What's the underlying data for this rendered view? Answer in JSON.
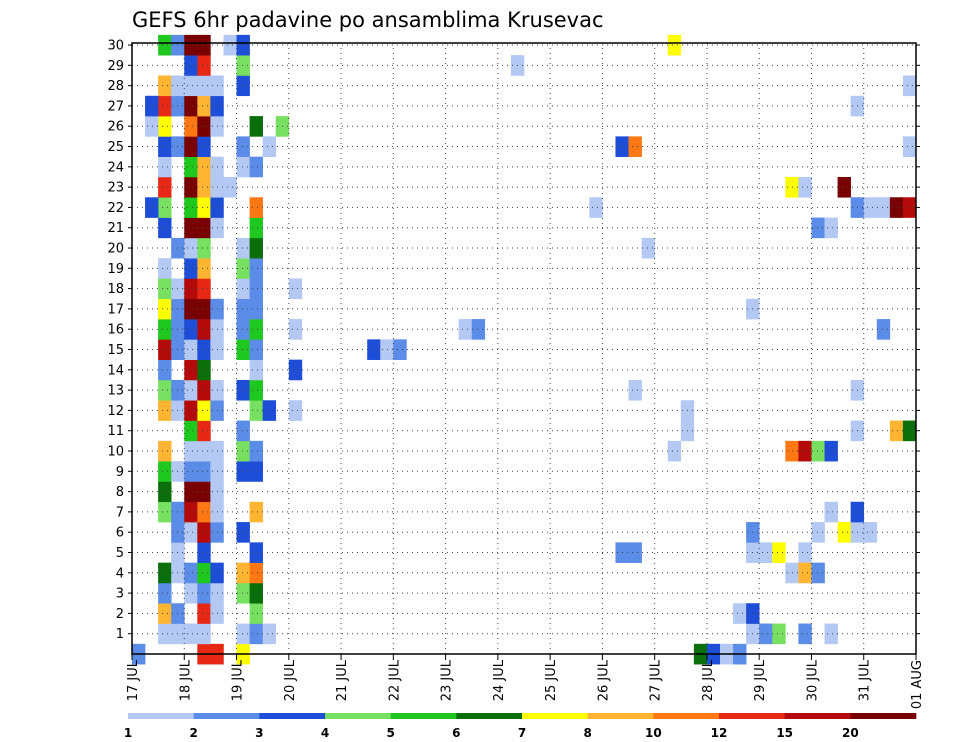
{
  "chart_data": {
    "type": "heatmap",
    "title": "GEFS 6hr padavine po ansamblima Krusevac",
    "x_tick_labels": [
      "17 JUL",
      "18 JUL",
      "19 JUL",
      "20 JUL",
      "21 JUL",
      "22 JUL",
      "23 JUL",
      "24 JUL",
      "25 JUL",
      "26 JUL",
      "27 JUL",
      "28 JUL",
      "29 JUL",
      "30 JUL",
      "31 JUL",
      "01 AUG"
    ],
    "y_tick_labels": [
      "1",
      "2",
      "3",
      "4",
      "5",
      "6",
      "7",
      "8",
      "9",
      "10",
      "11",
      "12",
      "13",
      "14",
      "15",
      "16",
      "17",
      "18",
      "19",
      "20",
      "21",
      "22",
      "23",
      "24",
      "25",
      "26",
      "27",
      "28",
      "29",
      "30"
    ],
    "xlim": [
      0,
      60
    ],
    "ylim": [
      0,
      30
    ],
    "grid": true,
    "legend": {
      "placement": "bottom",
      "labels": [
        "1",
        "2",
        "3",
        "4",
        "5",
        "6",
        "7",
        "8",
        "10",
        "12",
        "15",
        "20"
      ],
      "colors": [
        "#b4c8f4",
        "#5a8ce8",
        "#1e4ed8",
        "#78e060",
        "#1ec81e",
        "#0a6e0a",
        "#ffff00",
        "#ffb432",
        "#ff7814",
        "#e62814",
        "#b40a0a",
        "#780000"
      ]
    },
    "cells": [
      {
        "x": 0,
        "y": 0,
        "c": 1
      },
      {
        "x": 2,
        "y": 1,
        "c": 0
      },
      {
        "x": 2,
        "y": 2,
        "c": 7
      },
      {
        "x": 2,
        "y": 3,
        "c": 1
      },
      {
        "x": 2,
        "y": 4,
        "c": 5
      },
      {
        "x": 2,
        "y": 7,
        "c": 3
      },
      {
        "x": 2,
        "y": 8,
        "c": 5
      },
      {
        "x": 2,
        "y": 9,
        "c": 4
      },
      {
        "x": 2,
        "y": 10,
        "c": 7
      },
      {
        "x": 2,
        "y": 12,
        "c": 7
      },
      {
        "x": 2,
        "y": 13,
        "c": 3
      },
      {
        "x": 2,
        "y": 14,
        "c": 1
      },
      {
        "x": 2,
        "y": 15,
        "c": 10
      },
      {
        "x": 2,
        "y": 16,
        "c": 4
      },
      {
        "x": 2,
        "y": 17,
        "c": 6
      },
      {
        "x": 2,
        "y": 18,
        "c": 3
      },
      {
        "x": 2,
        "y": 19,
        "c": 0
      },
      {
        "x": 2,
        "y": 21,
        "c": 2
      },
      {
        "x": 2,
        "y": 22,
        "c": 3
      },
      {
        "x": 2,
        "y": 23,
        "c": 9
      },
      {
        "x": 2,
        "y": 24,
        "c": 0
      },
      {
        "x": 2,
        "y": 25,
        "c": 2
      },
      {
        "x": 2,
        "y": 26,
        "c": 6
      },
      {
        "x": 2,
        "y": 27,
        "c": 9
      },
      {
        "x": 2,
        "y": 28,
        "c": 7
      },
      {
        "x": 2,
        "y": 30,
        "c": 4
      },
      {
        "x": 3,
        "y": 1,
        "c": 0
      },
      {
        "x": 3,
        "y": 2,
        "c": 1
      },
      {
        "x": 3,
        "y": 4,
        "c": 0
      },
      {
        "x": 3,
        "y": 5,
        "c": 0
      },
      {
        "x": 3,
        "y": 6,
        "c": 1
      },
      {
        "x": 3,
        "y": 7,
        "c": 1
      },
      {
        "x": 3,
        "y": 9,
        "c": 0
      },
      {
        "x": 3,
        "y": 12,
        "c": 0
      },
      {
        "x": 3,
        "y": 13,
        "c": 1
      },
      {
        "x": 3,
        "y": 15,
        "c": 1
      },
      {
        "x": 3,
        "y": 16,
        "c": 1
      },
      {
        "x": 3,
        "y": 17,
        "c": 1
      },
      {
        "x": 3,
        "y": 18,
        "c": 0
      },
      {
        "x": 3,
        "y": 20,
        "c": 1
      },
      {
        "x": 3,
        "y": 25,
        "c": 1
      },
      {
        "x": 3,
        "y": 27,
        "c": 1
      },
      {
        "x": 3,
        "y": 28,
        "c": 0
      },
      {
        "x": 3,
        "y": 30,
        "c": 1
      },
      {
        "x": 1,
        "y": 22,
        "c": 2
      },
      {
        "x": 1,
        "y": 26,
        "c": 0
      },
      {
        "x": 1,
        "y": 27,
        "c": 2
      },
      {
        "x": 4,
        "y": 1,
        "c": 0
      },
      {
        "x": 4,
        "y": 3,
        "c": 0
      },
      {
        "x": 4,
        "y": 4,
        "c": 1
      },
      {
        "x": 4,
        "y": 6,
        "c": 0
      },
      {
        "x": 4,
        "y": 7,
        "c": 10
      },
      {
        "x": 4,
        "y": 8,
        "c": 11
      },
      {
        "x": 4,
        "y": 9,
        "c": 1
      },
      {
        "x": 4,
        "y": 10,
        "c": 0
      },
      {
        "x": 4,
        "y": 11,
        "c": 4
      },
      {
        "x": 4,
        "y": 12,
        "c": 10
      },
      {
        "x": 4,
        "y": 13,
        "c": 0
      },
      {
        "x": 4,
        "y": 14,
        "c": 10
      },
      {
        "x": 4,
        "y": 15,
        "c": 0
      },
      {
        "x": 4,
        "y": 16,
        "c": 2
      },
      {
        "x": 4,
        "y": 17,
        "c": 11
      },
      {
        "x": 4,
        "y": 18,
        "c": 10
      },
      {
        "x": 4,
        "y": 19,
        "c": 2
      },
      {
        "x": 4,
        "y": 20,
        "c": 0
      },
      {
        "x": 4,
        "y": 21,
        "c": 11
      },
      {
        "x": 4,
        "y": 22,
        "c": 4
      },
      {
        "x": 4,
        "y": 23,
        "c": 11
      },
      {
        "x": 4,
        "y": 24,
        "c": 4
      },
      {
        "x": 4,
        "y": 25,
        "c": 11
      },
      {
        "x": 4,
        "y": 26,
        "c": 8
      },
      {
        "x": 4,
        "y": 27,
        "c": 11
      },
      {
        "x": 4,
        "y": 28,
        "c": 0
      },
      {
        "x": 4,
        "y": 29,
        "c": 2
      },
      {
        "x": 4,
        "y": 30,
        "c": 11
      },
      {
        "x": 5,
        "y": 0,
        "c": 9
      },
      {
        "x": 5,
        "y": 1,
        "c": 0
      },
      {
        "x": 5,
        "y": 2,
        "c": 9
      },
      {
        "x": 5,
        "y": 3,
        "c": 1
      },
      {
        "x": 5,
        "y": 4,
        "c": 4
      },
      {
        "x": 5,
        "y": 5,
        "c": 2
      },
      {
        "x": 5,
        "y": 6,
        "c": 10
      },
      {
        "x": 5,
        "y": 7,
        "c": 8
      },
      {
        "x": 5,
        "y": 8,
        "c": 11
      },
      {
        "x": 5,
        "y": 9,
        "c": 1
      },
      {
        "x": 5,
        "y": 10,
        "c": 0
      },
      {
        "x": 5,
        "y": 11,
        "c": 9
      },
      {
        "x": 5,
        "y": 12,
        "c": 6
      },
      {
        "x": 5,
        "y": 13,
        "c": 10
      },
      {
        "x": 5,
        "y": 14,
        "c": 5
      },
      {
        "x": 5,
        "y": 15,
        "c": 2
      },
      {
        "x": 5,
        "y": 16,
        "c": 10
      },
      {
        "x": 5,
        "y": 17,
        "c": 11
      },
      {
        "x": 5,
        "y": 18,
        "c": 9
      },
      {
        "x": 5,
        "y": 19,
        "c": 7
      },
      {
        "x": 5,
        "y": 20,
        "c": 3
      },
      {
        "x": 5,
        "y": 21,
        "c": 11
      },
      {
        "x": 5,
        "y": 22,
        "c": 6
      },
      {
        "x": 5,
        "y": 23,
        "c": 7
      },
      {
        "x": 5,
        "y": 24,
        "c": 7
      },
      {
        "x": 5,
        "y": 25,
        "c": 2
      },
      {
        "x": 5,
        "y": 26,
        "c": 11
      },
      {
        "x": 5,
        "y": 27,
        "c": 7
      },
      {
        "x": 5,
        "y": 28,
        "c": 0
      },
      {
        "x": 5,
        "y": 29,
        "c": 9
      },
      {
        "x": 5,
        "y": 30,
        "c": 11
      },
      {
        "x": 6,
        "y": 0,
        "c": 9
      },
      {
        "x": 6,
        "y": 2,
        "c": 0
      },
      {
        "x": 6,
        "y": 3,
        "c": 0
      },
      {
        "x": 6,
        "y": 4,
        "c": 2
      },
      {
        "x": 6,
        "y": 6,
        "c": 1
      },
      {
        "x": 6,
        "y": 7,
        "c": 0
      },
      {
        "x": 6,
        "y": 8,
        "c": 0
      },
      {
        "x": 6,
        "y": 9,
        "c": 0
      },
      {
        "x": 6,
        "y": 10,
        "c": 0
      },
      {
        "x": 6,
        "y": 12,
        "c": 1
      },
      {
        "x": 6,
        "y": 13,
        "c": 0
      },
      {
        "x": 6,
        "y": 15,
        "c": 0
      },
      {
        "x": 6,
        "y": 16,
        "c": 0
      },
      {
        "x": 6,
        "y": 17,
        "c": 1
      },
      {
        "x": 6,
        "y": 21,
        "c": 0
      },
      {
        "x": 6,
        "y": 22,
        "c": 2
      },
      {
        "x": 6,
        "y": 23,
        "c": 0
      },
      {
        "x": 6,
        "y": 24,
        "c": 0
      },
      {
        "x": 6,
        "y": 26,
        "c": 0
      },
      {
        "x": 6,
        "y": 27,
        "c": 2
      },
      {
        "x": 6,
        "y": 28,
        "c": 0
      },
      {
        "x": 7,
        "y": 23,
        "c": 0
      },
      {
        "x": 7,
        "y": 30,
        "c": 0
      },
      {
        "x": 8,
        "y": 0,
        "c": 6
      },
      {
        "x": 8,
        "y": 1,
        "c": 0
      },
      {
        "x": 8,
        "y": 3,
        "c": 3
      },
      {
        "x": 8,
        "y": 4,
        "c": 7
      },
      {
        "x": 8,
        "y": 6,
        "c": 2
      },
      {
        "x": 8,
        "y": 9,
        "c": 2
      },
      {
        "x": 8,
        "y": 10,
        "c": 3
      },
      {
        "x": 8,
        "y": 11,
        "c": 1
      },
      {
        "x": 8,
        "y": 13,
        "c": 2
      },
      {
        "x": 8,
        "y": 15,
        "c": 4
      },
      {
        "x": 8,
        "y": 16,
        "c": 1
      },
      {
        "x": 8,
        "y": 17,
        "c": 1
      },
      {
        "x": 8,
        "y": 18,
        "c": 0
      },
      {
        "x": 8,
        "y": 19,
        "c": 3
      },
      {
        "x": 8,
        "y": 20,
        "c": 0
      },
      {
        "x": 8,
        "y": 24,
        "c": 0
      },
      {
        "x": 8,
        "y": 25,
        "c": 1
      },
      {
        "x": 8,
        "y": 28,
        "c": 2
      },
      {
        "x": 8,
        "y": 29,
        "c": 3
      },
      {
        "x": 8,
        "y": 30,
        "c": 2
      },
      {
        "x": 9,
        "y": 1,
        "c": 1
      },
      {
        "x": 9,
        "y": 2,
        "c": 3
      },
      {
        "x": 9,
        "y": 3,
        "c": 5
      },
      {
        "x": 9,
        "y": 4,
        "c": 8
      },
      {
        "x": 9,
        "y": 5,
        "c": 2
      },
      {
        "x": 9,
        "y": 7,
        "c": 7
      },
      {
        "x": 9,
        "y": 9,
        "c": 2
      },
      {
        "x": 9,
        "y": 10,
        "c": 1
      },
      {
        "x": 9,
        "y": 12,
        "c": 3
      },
      {
        "x": 9,
        "y": 13,
        "c": 4
      },
      {
        "x": 9,
        "y": 14,
        "c": 0
      },
      {
        "x": 9,
        "y": 15,
        "c": 1
      },
      {
        "x": 9,
        "y": 16,
        "c": 4
      },
      {
        "x": 9,
        "y": 17,
        "c": 1
      },
      {
        "x": 9,
        "y": 18,
        "c": 1
      },
      {
        "x": 9,
        "y": 19,
        "c": 1
      },
      {
        "x": 9,
        "y": 20,
        "c": 5
      },
      {
        "x": 9,
        "y": 21,
        "c": 4
      },
      {
        "x": 9,
        "y": 22,
        "c": 8
      },
      {
        "x": 9,
        "y": 24,
        "c": 1
      },
      {
        "x": 9,
        "y": 26,
        "c": 5
      },
      {
        "x": 10,
        "y": 1,
        "c": 0
      },
      {
        "x": 10,
        "y": 12,
        "c": 2
      },
      {
        "x": 10,
        "y": 25,
        "c": 0
      },
      {
        "x": 11,
        "y": 26,
        "c": 3
      },
      {
        "x": 12,
        "y": 14,
        "c": 2
      },
      {
        "x": 12,
        "y": 16,
        "c": 0
      },
      {
        "x": 12,
        "y": 18,
        "c": 0
      },
      {
        "x": 12,
        "y": 12,
        "c": 0
      },
      {
        "x": 18,
        "y": 15,
        "c": 2
      },
      {
        "x": 19,
        "y": 15,
        "c": 0
      },
      {
        "x": 20,
        "y": 15,
        "c": 1
      },
      {
        "x": 25,
        "y": 16,
        "c": 0
      },
      {
        "x": 26,
        "y": 16,
        "c": 1
      },
      {
        "x": 29,
        "y": 29,
        "c": 0
      },
      {
        "x": 35,
        "y": 22,
        "c": 0
      },
      {
        "x": 37,
        "y": 25,
        "c": 2
      },
      {
        "x": 38,
        "y": 25,
        "c": 8
      },
      {
        "x": 38,
        "y": 5,
        "c": 1
      },
      {
        "x": 37,
        "y": 5,
        "c": 1
      },
      {
        "x": 38,
        "y": 13,
        "c": 0
      },
      {
        "x": 39,
        "y": 20,
        "c": 0
      },
      {
        "x": 41,
        "y": 30,
        "c": 6
      },
      {
        "x": 41,
        "y": 10,
        "c": 0
      },
      {
        "x": 42,
        "y": 11,
        "c": 0
      },
      {
        "x": 42,
        "y": 12,
        "c": 0
      },
      {
        "x": 43,
        "y": 0,
        "c": 5
      },
      {
        "x": 44,
        "y": 0,
        "c": 2
      },
      {
        "x": 45,
        "y": 0,
        "c": 0
      },
      {
        "x": 46,
        "y": 0,
        "c": 1
      },
      {
        "x": 46,
        "y": 2,
        "c": 0
      },
      {
        "x": 47,
        "y": 1,
        "c": 0
      },
      {
        "x": 47,
        "y": 2,
        "c": 2
      },
      {
        "x": 47,
        "y": 5,
        "c": 0
      },
      {
        "x": 47,
        "y": 6,
        "c": 1
      },
      {
        "x": 47,
        "y": 17,
        "c": 0
      },
      {
        "x": 48,
        "y": 1,
        "c": 1
      },
      {
        "x": 48,
        "y": 5,
        "c": 0
      },
      {
        "x": 49,
        "y": 1,
        "c": 3
      },
      {
        "x": 49,
        "y": 5,
        "c": 6
      },
      {
        "x": 50,
        "y": 23,
        "c": 6
      },
      {
        "x": 51,
        "y": 23,
        "c": 0
      },
      {
        "x": 51,
        "y": 1,
        "c": 1
      },
      {
        "x": 51,
        "y": 5,
        "c": 0
      },
      {
        "x": 50,
        "y": 4,
        "c": 0
      },
      {
        "x": 51,
        "y": 4,
        "c": 7
      },
      {
        "x": 52,
        "y": 4,
        "c": 1
      },
      {
        "x": 50,
        "y": 10,
        "c": 8
      },
      {
        "x": 51,
        "y": 10,
        "c": 10
      },
      {
        "x": 52,
        "y": 10,
        "c": 3
      },
      {
        "x": 53,
        "y": 10,
        "c": 2
      },
      {
        "x": 52,
        "y": 6,
        "c": 0
      },
      {
        "x": 52,
        "y": 21,
        "c": 1
      },
      {
        "x": 53,
        "y": 21,
        "c": 0
      },
      {
        "x": 53,
        "y": 1,
        "c": 0
      },
      {
        "x": 53,
        "y": 7,
        "c": 0
      },
      {
        "x": 54,
        "y": 6,
        "c": 6
      },
      {
        "x": 54,
        "y": 23,
        "c": 11
      },
      {
        "x": 55,
        "y": 6,
        "c": 0
      },
      {
        "x": 56,
        "y": 6,
        "c": 0
      },
      {
        "x": 55,
        "y": 7,
        "c": 2
      },
      {
        "x": 55,
        "y": 11,
        "c": 0
      },
      {
        "x": 55,
        "y": 13,
        "c": 0
      },
      {
        "x": 55,
        "y": 27,
        "c": 0
      },
      {
        "x": 55,
        "y": 22,
        "c": 1
      },
      {
        "x": 56,
        "y": 22,
        "c": 0
      },
      {
        "x": 57,
        "y": 22,
        "c": 0
      },
      {
        "x": 57,
        "y": 16,
        "c": 1
      },
      {
        "x": 58,
        "y": 11,
        "c": 7
      },
      {
        "x": 59,
        "y": 11,
        "c": 5
      },
      {
        "x": 58,
        "y": 22,
        "c": 11
      },
      {
        "x": 59,
        "y": 22,
        "c": 10
      },
      {
        "x": 59,
        "y": 25,
        "c": 0
      },
      {
        "x": 59,
        "y": 28,
        "c": 0
      }
    ]
  }
}
